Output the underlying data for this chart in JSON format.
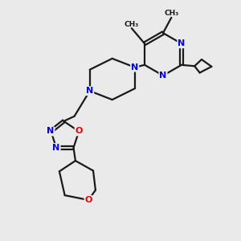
{
  "background_color": "#eaeaea",
  "figure_size": [
    3.0,
    3.0
  ],
  "dpi": 100,
  "bond_color": "#1a1a1a",
  "bond_width": 1.6,
  "atom_colors": {
    "N": "#0000ee",
    "O": "#ee0000",
    "C": "#1a1a1a"
  }
}
